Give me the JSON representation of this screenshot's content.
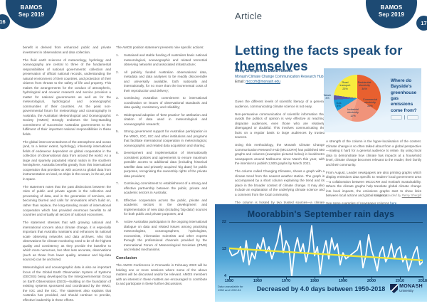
{
  "brand": {
    "line1": "BAMOS",
    "line2": "Sep 2019"
  },
  "left_page": {
    "page_number": "16",
    "col1_paragraphs": [
      "benefit is derived from enhanced public and private investment in observations and data collection.",
      "The fluid earth sciences of meteorology, hydrology and oceanography are central to three of the fundamental responsibilities of national governments: collection and preservation of official national records, understanding the natural environment of their countries, and protection of their citizens from threats to the safety of life and property. This makes the arrangements for the conduct of atmospheric, hydrological and oceanic research and service provision a matter for national governments as well as for the meteorological, hydrological and oceanographic communities of their countries. As the peak non-governmental forum for meteorology and oceanography in Australia, the Australian Meteorological and Oceanographic Society (AMOS) strongly endorses the long-standing commitment of successive Australian governments to the fulfilment of their important national responsibilities in these fields.",
      "The global interconnectedness of the atmosphere and ocean (and, to a lesser extent, hydrology), inherently international fields of endeavour dependent on global cooperation in the collection of observational data from around the world. As a large and sparsely populated island nation in the southern hemisphere, Australia benefits greatly from this international cooperation that provides us with access to global data from instrumentation on land, on ships in the ocean, in the air, and in space.",
      "The statement notes that the past distinctions between the roles of public and private agents in the collection and processing of data, and in the generation of services, are becoming blurred and calls for innovations which build on, rather than replace, the long-standing model of international cooperation which has provided enormous benefits to all countries and virtually all sectors of national economies.",
      "The statement stresses that with growing national and international concern about climate change, it is especially important that Australia maintains and enhances its national scale observing networks and data archives. Also that observations for climate monitoring need to be of the highest quality and consistency as they provide the baseline to which more numerous, but often less accurate, observations (such as those from lower quality, amateur and big-data sources) can be anchored.",
      "Meteorological and oceanographic data is also an important focus of the Global Earth Observation System of Systems (GEOSS) being developed by the Intergovernmental Group on Earth Observations (GEO)—building on the foundation of existing systems sponsored and coordinated by the WMO, the IOC and the ISC. The statement also explains that Australia has provided, and should continue to provide, effective leadership in these efforts."
    ],
    "col2_intro": "The AMOS position statement presents nine specific actions:",
    "col2_actions": [
      "Sustained and stable funding of Australia's basic national meteorological, oceanographic and related terrestrial observing networks and associated infrastructure;",
      "All publicly funded Australian observational data, metadata and data analyses to be readily discoverable and universally available, both nationally and internationally, for no more than the incremental costs of their reproduction and delivery;",
      "Continuing Australian commitment to international coordination on issues of observational standards and data quality, consistency and reliability;",
      "Widespread adoption of 'best practice' for attribution and citation of data used in meteorological and oceanographic research;",
      "Strong government support for Australian participation in the WMO, IOC, ISC and other institutions and programs that facilitate international cooperation in meteorological, oceanographic and related data acquisition and sharing;",
      "Development and implementation of internationally consistent policies and agreements to ensure maximum possible access to additional data (including historical satellite data and privately acquired 'big data') for public purposes, recognising the ownership rights of the private data providers;",
      "Continuing commitment to establishment of a strong and effective partnership between the public, private and academic sectors in Australia;",
      "Effective cooperation across the public, private and academic sectors in the development and implementation of new data (including 'big-data') sources for both public and private purposes; and",
      "Active Australian participation in the ongoing international dialogue on data and related issues among practising meteorologists, oceanographers, hydrologists, economists, information scientists and other experts through the professional channels provided by the International Forum of Meteorological Societies (IFMS) and related mechanisms."
    ],
    "conclusion_heading": "Conclusion",
    "conclusion_text": "The AMOS Conference in Fremantle in February 2020 will be holding one or more sessions where some of the above matters will be discussed and/or be relevant. AMOS members with an interest in these matters are encouraged to contribute to and participate in these further discussions."
  },
  "right_page": {
    "header": "Article",
    "page_number": "17",
    "title": "Letting the facts speak for themselves",
    "authors": "Remy Shergill and David Holmes",
    "affiliation": "Monash Climate Change Communication Research Hub",
    "email_label": "Email: ",
    "email": "mcccrh@monash.edu",
    "col1_paragraphs": [
      "Given the different levels of scientific literacy of a general audience, communicating climate science is not easy.",
      "Non-persuasive communication of scientific information that avoids the politics of opinion is very effective at reaching disparate audiences, even those who are relatively disengaged or doubtful. This involves communicating the facts on a regular basis to large audiences by trusted sources.",
      "Using this methodology, the Monash Climate Change Communication Research Hub (MCCCRH) has published 550 graphs and columns (examples pictured below) in local/metro newspapers around Melbourne since March this year, with the intention to publish 2,500 graphs by March 2021.",
      "The column called Changing Climates, shows a graph with a climate trend from the nearest weather station. The graph is accompanied by a short column explaining the trend and its place in the broader context of climate change. It may also include an explanation of the underlying climate science and a comment from the local community.",
      "The column is hosted by two trusted sources—a climate scientist, a trusted source of climate science, and a community newspaper, a trusted source of all things local."
    ],
    "col2_paragraphs": [
      "A strength of the column is the hyper-localisation of the content. Climate change is so often talked about from a global perspective—making it hard for a general audience to relate. By using local data to demonstrate how climate has impacts at a household level, climate change becomes relevant to the reader, their family and their community.",
      "From August, Leader newspapers are also printing graphs which display emissions data specific to readers' local government area—a collaboration between MCCCRH and Ironbark Sustainability. Where the climate graphs help translate global climate change into local impacts, the emissions graphs start to show links between local actions and global solutions."
    ],
    "see_examples_text": "See some examples of newspaper columns ",
    "see_examples_link": "here.",
    "credit_prefix": "Images provided by ",
    "credit_name": "Remy Shergill",
    "monash_logo": {
      "line1": "MONASH",
      "line2": "University"
    }
  },
  "chart_data": [
    {
      "type": "pie",
      "title": "Where do Bayside's greenhouse gas emissions come from?",
      "slices": [
        {
          "label": "Residential electricity",
          "pct": 34,
          "pct_label": "34%",
          "color": "#e8602f"
        },
        {
          "label": "Commercial electricity",
          "pct": 20,
          "pct_label": "20%",
          "color": "#f0937a"
        },
        {
          "label": "Industrial electricity",
          "pct": 12,
          "pct_label": "12%",
          "color": "#f4a78f"
        },
        {
          "label": "Gas",
          "pct": 8,
          "pct_label": "8%",
          "color": "#1a9cd8"
        },
        {
          "label": "Waste",
          "pct": 3,
          "pct_label": "3%",
          "color": "#5f58a5"
        },
        {
          "label": "Road transport",
          "pct": 23,
          "pct_label": "23%",
          "color": "#f8ec3d"
        }
      ]
    },
    {
      "type": "line",
      "title": "Moorabbin's September rain days",
      "x_start": 1950,
      "x_end": 2018,
      "x_ticks": [
        1950,
        1960,
        1970,
        1980,
        1990,
        2000,
        2010,
        2018
      ],
      "y_ticks": [
        22,
        13,
        4
      ],
      "ylim": [
        4,
        22
      ],
      "values": [
        13,
        11,
        null,
        12,
        14,
        9,
        16,
        8,
        12,
        10,
        15,
        13,
        17,
        12,
        14,
        10,
        13,
        16,
        21,
        12,
        16,
        14,
        4,
        13,
        17,
        12,
        15,
        9,
        13,
        21,
        11,
        14,
        5,
        12,
        16,
        10,
        17,
        13,
        15,
        8,
        12,
        10,
        null,
        null,
        null,
        13,
        16,
        7,
        11,
        18,
        13,
        10,
        6,
        12,
        14,
        9,
        11,
        15,
        10,
        13,
        14,
        9,
        11,
        6,
        9,
        12,
        14,
        8,
        9
      ],
      "trend": {
        "start": 13.5,
        "end": 9.5
      },
      "caption": "Decreased by 4.0 days between 1950-2018",
      "note": "Data unavailable for 1952 and 1992-94",
      "line_color": "#ffffff",
      "trend_color": "#f2e83a"
    }
  ]
}
